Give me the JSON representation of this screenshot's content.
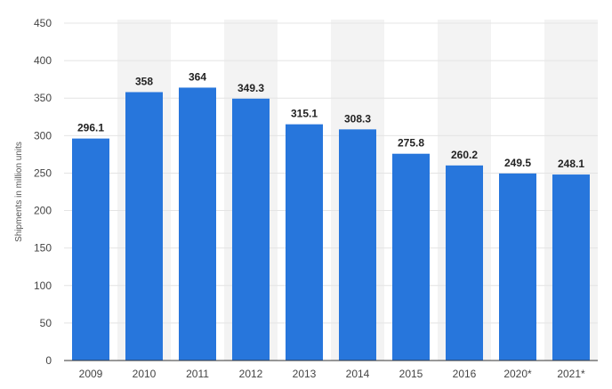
{
  "chart_data": {
    "type": "bar",
    "categories": [
      "2009",
      "2010",
      "2011",
      "2012",
      "2013",
      "2014",
      "2015",
      "2016",
      "2020*",
      "2021*"
    ],
    "values": [
      296.1,
      358,
      364,
      349.3,
      315.1,
      308.3,
      275.8,
      260.2,
      249.5,
      248.1
    ],
    "value_labels": [
      "296.1",
      "358",
      "364",
      "349.3",
      "315.1",
      "308.3",
      "275.8",
      "260.2",
      "249.5",
      "248.1"
    ],
    "ylabel": "Shipments in million units",
    "ylim": [
      0,
      450
    ],
    "yticks": [
      0,
      50,
      100,
      150,
      200,
      250,
      300,
      350,
      400,
      450
    ],
    "grid": true,
    "bar_color": "#2776dc",
    "band_color": "#f3f3f3"
  }
}
